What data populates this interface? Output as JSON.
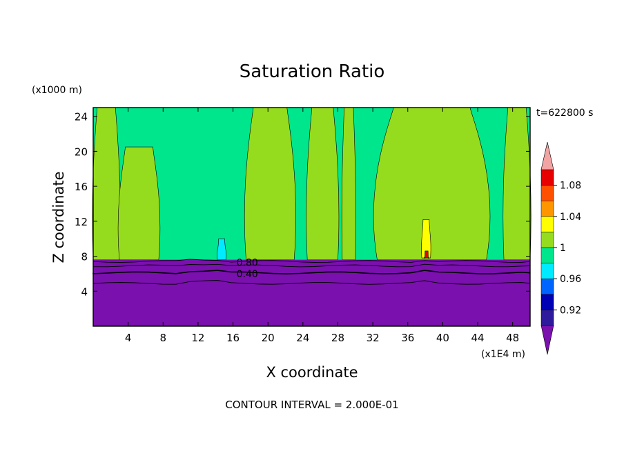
{
  "chart_data": {
    "type": "heatmap",
    "title": "Saturation Ratio",
    "xlabel": "X coordinate",
    "ylabel": "Z coordinate",
    "x_unit": "(x1E4 m)",
    "y_unit": "(x1000 m)",
    "time_label": "t=622800 s",
    "footer": "CONTOUR INTERVAL = 2.000E-01",
    "xlim": [
      0,
      50
    ],
    "ylim": [
      0,
      25
    ],
    "x_ticks": [
      "4",
      "8",
      "12",
      "16",
      "20",
      "24",
      "28",
      "32",
      "36",
      "40",
      "44",
      "48"
    ],
    "y_ticks": [
      "4",
      "8",
      "12",
      "16",
      "20",
      "24"
    ],
    "contour_labels": [
      {
        "text": "0.80",
        "x": 16.4,
        "y": 7.3
      },
      {
        "text": "0.40",
        "x": 16.4,
        "y": 6.0
      }
    ],
    "colorbar": {
      "labels": [
        "0.92",
        "0.96",
        "1",
        "1.04",
        "1.08"
      ],
      "levels": [
        0.9,
        0.92,
        0.94,
        0.96,
        0.98,
        1.0,
        1.02,
        1.04,
        1.06,
        1.08,
        1.1
      ],
      "colors": [
        "#2e1a9c",
        "#0000b4",
        "#0064ff",
        "#00ebff",
        "#00e68c",
        "#96dc1e",
        "#ffff00",
        "#ff9600",
        "#ff5000",
        "#e60000"
      ],
      "under_color": "#7a10ad",
      "over_color": "#f2a3a3"
    },
    "background_color": "#00e68c",
    "lower_layer_color": "#7a10ad",
    "lower_layer_top": 7.6,
    "regions": [
      {
        "level": "1",
        "color": "#96dc1e",
        "x": [
          0,
          3
        ],
        "top": 25,
        "bottom": 7.6
      },
      {
        "level": "1",
        "color": "#96dc1e",
        "x": [
          3,
          7.5
        ],
        "top": 20.5,
        "bottom": 7.6
      },
      {
        "level": "1",
        "color": "#96dc1e",
        "x": [
          17.5,
          23
        ],
        "top": 25,
        "bottom": 7.6
      },
      {
        "level": "1",
        "color": "#96dc1e",
        "x": [
          24.5,
          28
        ],
        "top": 25,
        "bottom": 7.6
      },
      {
        "level": "1",
        "color": "#96dc1e",
        "x": [
          28.5,
          30
        ],
        "top": 25,
        "bottom": 7.6
      },
      {
        "level": "1",
        "color": "#96dc1e",
        "x": [
          32.5,
          45
        ],
        "top": 25,
        "bottom": 7.6
      },
      {
        "level": "1",
        "color": "#96dc1e",
        "x": [
          47,
          50
        ],
        "top": 25,
        "bottom": 7.6
      },
      {
        "level": "1.04",
        "color": "#ffff00",
        "x": [
          37.6,
          38.6
        ],
        "top": 12.2,
        "bottom": 7.8
      },
      {
        "level": "1.08",
        "color": "#e60000",
        "x": [
          37.9,
          38.4
        ],
        "top": 8.6,
        "bottom": 7.8
      },
      {
        "level": "0.96",
        "color": "#00ebff",
        "x": [
          14.2,
          15.2
        ],
        "top": 10.0,
        "bottom": 7.6
      }
    ],
    "contour_lines": [
      0.8,
      0.6,
      0.4,
      0.2
    ]
  }
}
